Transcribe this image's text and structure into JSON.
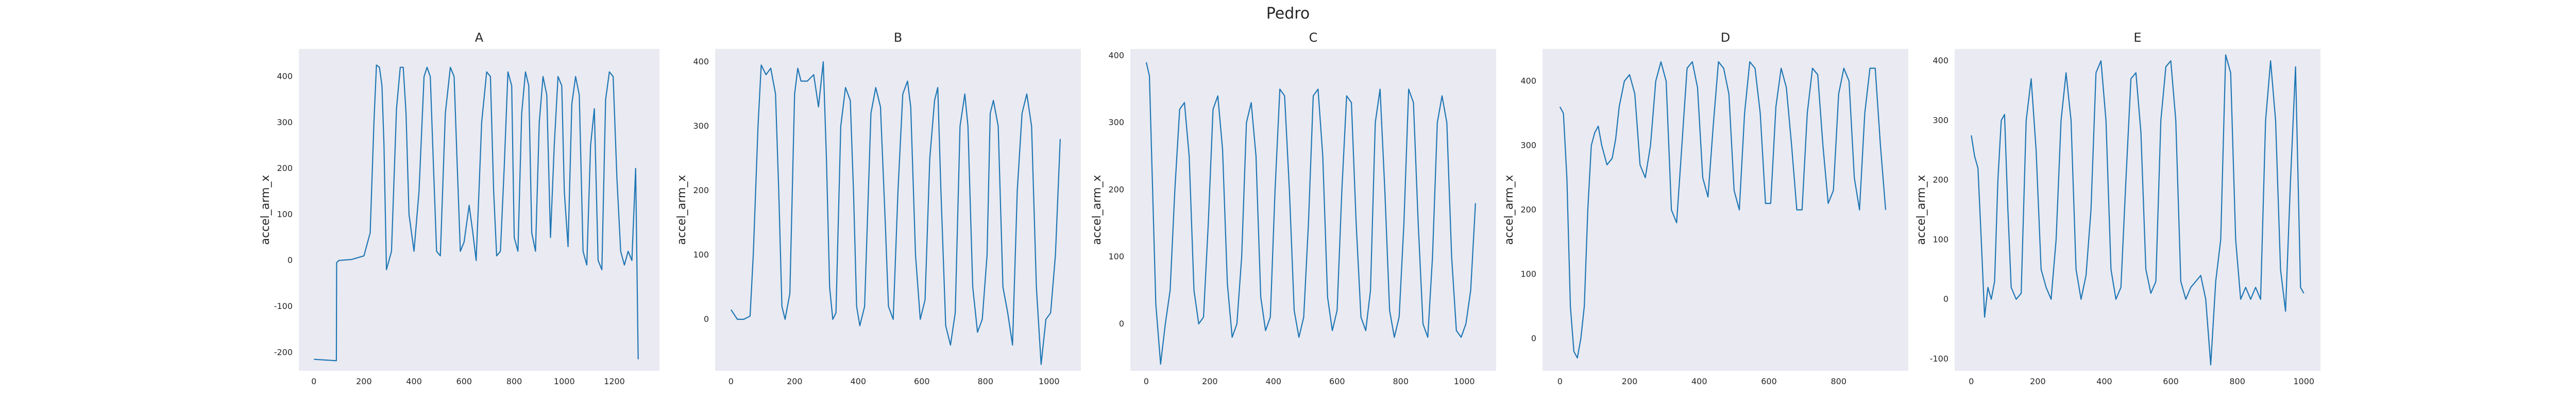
{
  "figure": {
    "title": "Pedro"
  },
  "colors": {
    "line": "#1f77b4",
    "panel_bg": "#eaeaf2",
    "text": "#262626"
  },
  "chart_data": [
    {
      "type": "line",
      "title": "A",
      "xlabel": "",
      "ylabel": "accel_arm_x",
      "xlim": [
        -60,
        1380
      ],
      "ylim": [
        -240,
        460
      ],
      "xticks": [
        0,
        200,
        400,
        600,
        800,
        1000,
        1200
      ],
      "yticks": [
        -200,
        -100,
        0,
        100,
        200,
        300,
        400
      ],
      "grid": false,
      "series": [
        {
          "x": [
            0,
            90,
            91,
            100,
            150,
            200,
            225,
            240,
            250,
            262,
            272,
            280,
            290,
            310,
            330,
            345,
            357,
            368,
            380,
            400,
            420,
            440,
            452,
            465,
            478,
            490,
            505,
            525,
            545,
            560,
            573,
            585,
            600,
            620,
            635,
            648,
            660,
            670,
            690,
            705,
            718,
            730,
            745,
            760,
            775,
            790,
            800,
            815,
            830,
            845,
            858,
            870,
            885,
            900,
            915,
            930,
            945,
            960,
            975,
            990,
            1000,
            1015,
            1030,
            1045,
            1060,
            1075,
            1090,
            1105,
            1120,
            1135,
            1150,
            1165,
            1180,
            1195,
            1210,
            1225,
            1240,
            1255,
            1270,
            1285,
            1295
          ],
          "y": [
            -215,
            -218,
            -5,
            0,
            2,
            10,
            60,
            300,
            425,
            420,
            380,
            250,
            -20,
            20,
            330,
            420,
            420,
            320,
            100,
            20,
            150,
            400,
            420,
            400,
            200,
            20,
            10,
            320,
            420,
            400,
            200,
            20,
            40,
            120,
            60,
            0,
            160,
            300,
            410,
            400,
            150,
            10,
            20,
            200,
            410,
            380,
            50,
            20,
            320,
            410,
            380,
            60,
            20,
            300,
            400,
            360,
            50,
            250,
            400,
            380,
            150,
            30,
            340,
            400,
            360,
            20,
            -10,
            250,
            330,
            0,
            -20,
            350,
            410,
            400,
            180,
            20,
            -10,
            20,
            0,
            200,
            -215
          ]
        }
      ]
    },
    {
      "type": "line",
      "title": "B",
      "xlabel": "",
      "ylabel": "accel_arm_x",
      "xlim": [
        -50,
        1100
      ],
      "ylim": [
        -80,
        420
      ],
      "xticks": [
        0,
        200,
        400,
        600,
        800,
        1000
      ],
      "yticks": [
        0,
        100,
        200,
        300,
        400
      ],
      "grid": false,
      "series": [
        {
          "x": [
            0,
            20,
            40,
            60,
            70,
            85,
            95,
            110,
            125,
            140,
            150,
            160,
            170,
            185,
            200,
            210,
            220,
            240,
            260,
            275,
            290,
            300,
            310,
            320,
            330,
            345,
            360,
            375,
            385,
            395,
            405,
            420,
            440,
            455,
            470,
            485,
            495,
            510,
            525,
            540,
            555,
            565,
            580,
            595,
            610,
            625,
            640,
            650,
            660,
            675,
            690,
            705,
            720,
            735,
            745,
            760,
            775,
            790,
            805,
            815,
            825,
            840,
            855,
            870,
            885,
            900,
            915,
            930,
            945,
            960,
            975,
            990,
            1005,
            1020,
            1035
          ],
          "y": [
            15,
            0,
            0,
            5,
            100,
            300,
            395,
            380,
            390,
            350,
            200,
            20,
            0,
            40,
            350,
            390,
            370,
            370,
            380,
            330,
            400,
            250,
            50,
            0,
            10,
            300,
            360,
            340,
            200,
            20,
            -10,
            20,
            320,
            360,
            330,
            150,
            20,
            0,
            200,
            350,
            370,
            330,
            100,
            0,
            30,
            250,
            340,
            360,
            200,
            -10,
            -40,
            10,
            300,
            350,
            300,
            50,
            -20,
            0,
            100,
            320,
            340,
            300,
            50,
            10,
            -40,
            200,
            320,
            350,
            300,
            50,
            -70,
            0,
            10,
            100,
            280
          ]
        }
      ]
    },
    {
      "type": "line",
      "title": "C",
      "xlabel": "",
      "ylabel": "accel_arm_x",
      "xlim": [
        -50,
        1100
      ],
      "ylim": [
        -70,
        410
      ],
      "xticks": [
        0,
        200,
        400,
        600,
        800,
        1000
      ],
      "yticks": [
        0,
        100,
        200,
        300,
        400
      ],
      "grid": false,
      "series": [
        {
          "x": [
            0,
            10,
            20,
            30,
            45,
            60,
            75,
            90,
            105,
            120,
            135,
            150,
            165,
            180,
            195,
            210,
            225,
            240,
            255,
            270,
            285,
            300,
            315,
            330,
            345,
            360,
            375,
            390,
            405,
            420,
            435,
            450,
            465,
            480,
            495,
            510,
            525,
            540,
            555,
            570,
            585,
            600,
            615,
            630,
            645,
            660,
            675,
            690,
            705,
            720,
            735,
            750,
            765,
            780,
            795,
            810,
            825,
            840,
            855,
            870,
            885,
            900,
            915,
            930,
            945,
            960,
            975,
            990,
            1005,
            1020,
            1035
          ],
          "y": [
            390,
            370,
            200,
            30,
            -60,
            0,
            50,
            200,
            320,
            330,
            250,
            50,
            0,
            10,
            150,
            320,
            340,
            260,
            60,
            -20,
            0,
            100,
            300,
            330,
            250,
            40,
            -10,
            10,
            200,
            350,
            340,
            200,
            20,
            -20,
            10,
            150,
            340,
            350,
            250,
            40,
            -10,
            20,
            200,
            340,
            330,
            150,
            10,
            -10,
            50,
            300,
            350,
            200,
            20,
            -20,
            10,
            150,
            350,
            330,
            150,
            0,
            -20,
            100,
            300,
            340,
            300,
            100,
            -10,
            -20,
            0,
            50,
            180
          ]
        }
      ]
    },
    {
      "type": "line",
      "title": "D",
      "xlabel": "",
      "ylabel": "accel_arm_x",
      "xlim": [
        -50,
        1000
      ],
      "ylim": [
        -50,
        450
      ],
      "xticks": [
        0,
        200,
        400,
        600,
        800
      ],
      "yticks": [
        0,
        100,
        200,
        300,
        400
      ],
      "grid": false,
      "series": [
        {
          "x": [
            0,
            10,
            20,
            30,
            40,
            50,
            60,
            70,
            80,
            90,
            100,
            110,
            120,
            135,
            150,
            160,
            170,
            185,
            200,
            215,
            230,
            245,
            260,
            275,
            290,
            305,
            320,
            335,
            350,
            365,
            380,
            395,
            410,
            425,
            440,
            455,
            470,
            485,
            500,
            515,
            530,
            545,
            560,
            575,
            590,
            605,
            620,
            635,
            650,
            665,
            680,
            695,
            710,
            725,
            740,
            755,
            770,
            785,
            800,
            815,
            830,
            845,
            860,
            875,
            890,
            905,
            920,
            935
          ],
          "y": [
            360,
            350,
            250,
            50,
            -20,
            -30,
            0,
            50,
            200,
            300,
            320,
            330,
            300,
            270,
            280,
            310,
            360,
            400,
            410,
            380,
            270,
            250,
            300,
            400,
            430,
            400,
            200,
            180,
            300,
            420,
            430,
            390,
            250,
            220,
            330,
            430,
            420,
            380,
            230,
            200,
            350,
            430,
            420,
            350,
            210,
            210,
            360,
            420,
            390,
            300,
            200,
            200,
            350,
            420,
            410,
            300,
            210,
            230,
            380,
            420,
            400,
            250,
            200,
            350,
            420,
            420,
            300,
            200
          ]
        }
      ]
    },
    {
      "type": "line",
      "title": "E",
      "xlabel": "",
      "ylabel": "accel_arm_x",
      "xlim": [
        -50,
        1050
      ],
      "ylim": [
        -120,
        420
      ],
      "xticks": [
        0,
        200,
        400,
        600,
        800,
        1000
      ],
      "yticks": [
        -100,
        0,
        100,
        200,
        300,
        400
      ],
      "grid": false,
      "series": [
        {
          "x": [
            0,
            10,
            20,
            30,
            40,
            50,
            60,
            70,
            80,
            90,
            100,
            110,
            120,
            135,
            150,
            165,
            180,
            195,
            210,
            225,
            240,
            255,
            270,
            285,
            300,
            315,
            330,
            345,
            360,
            375,
            390,
            405,
            420,
            435,
            450,
            465,
            480,
            495,
            510,
            525,
            540,
            555,
            570,
            585,
            600,
            615,
            630,
            645,
            660,
            675,
            690,
            705,
            720,
            735,
            750,
            765,
            780,
            795,
            810,
            825,
            840,
            855,
            870,
            885,
            900,
            915,
            930,
            945,
            960,
            975,
            990,
            1000
          ],
          "y": [
            275,
            240,
            220,
            100,
            -30,
            20,
            0,
            30,
            200,
            300,
            310,
            150,
            20,
            0,
            10,
            300,
            370,
            250,
            50,
            20,
            0,
            100,
            300,
            380,
            300,
            50,
            0,
            40,
            150,
            380,
            400,
            300,
            50,
            0,
            20,
            200,
            370,
            380,
            280,
            50,
            10,
            30,
            300,
            390,
            400,
            300,
            30,
            0,
            20,
            30,
            40,
            0,
            -110,
            30,
            100,
            410,
            380,
            100,
            0,
            20,
            0,
            20,
            0,
            300,
            400,
            300,
            50,
            -20,
            200,
            390,
            20,
            10
          ]
        }
      ]
    }
  ]
}
